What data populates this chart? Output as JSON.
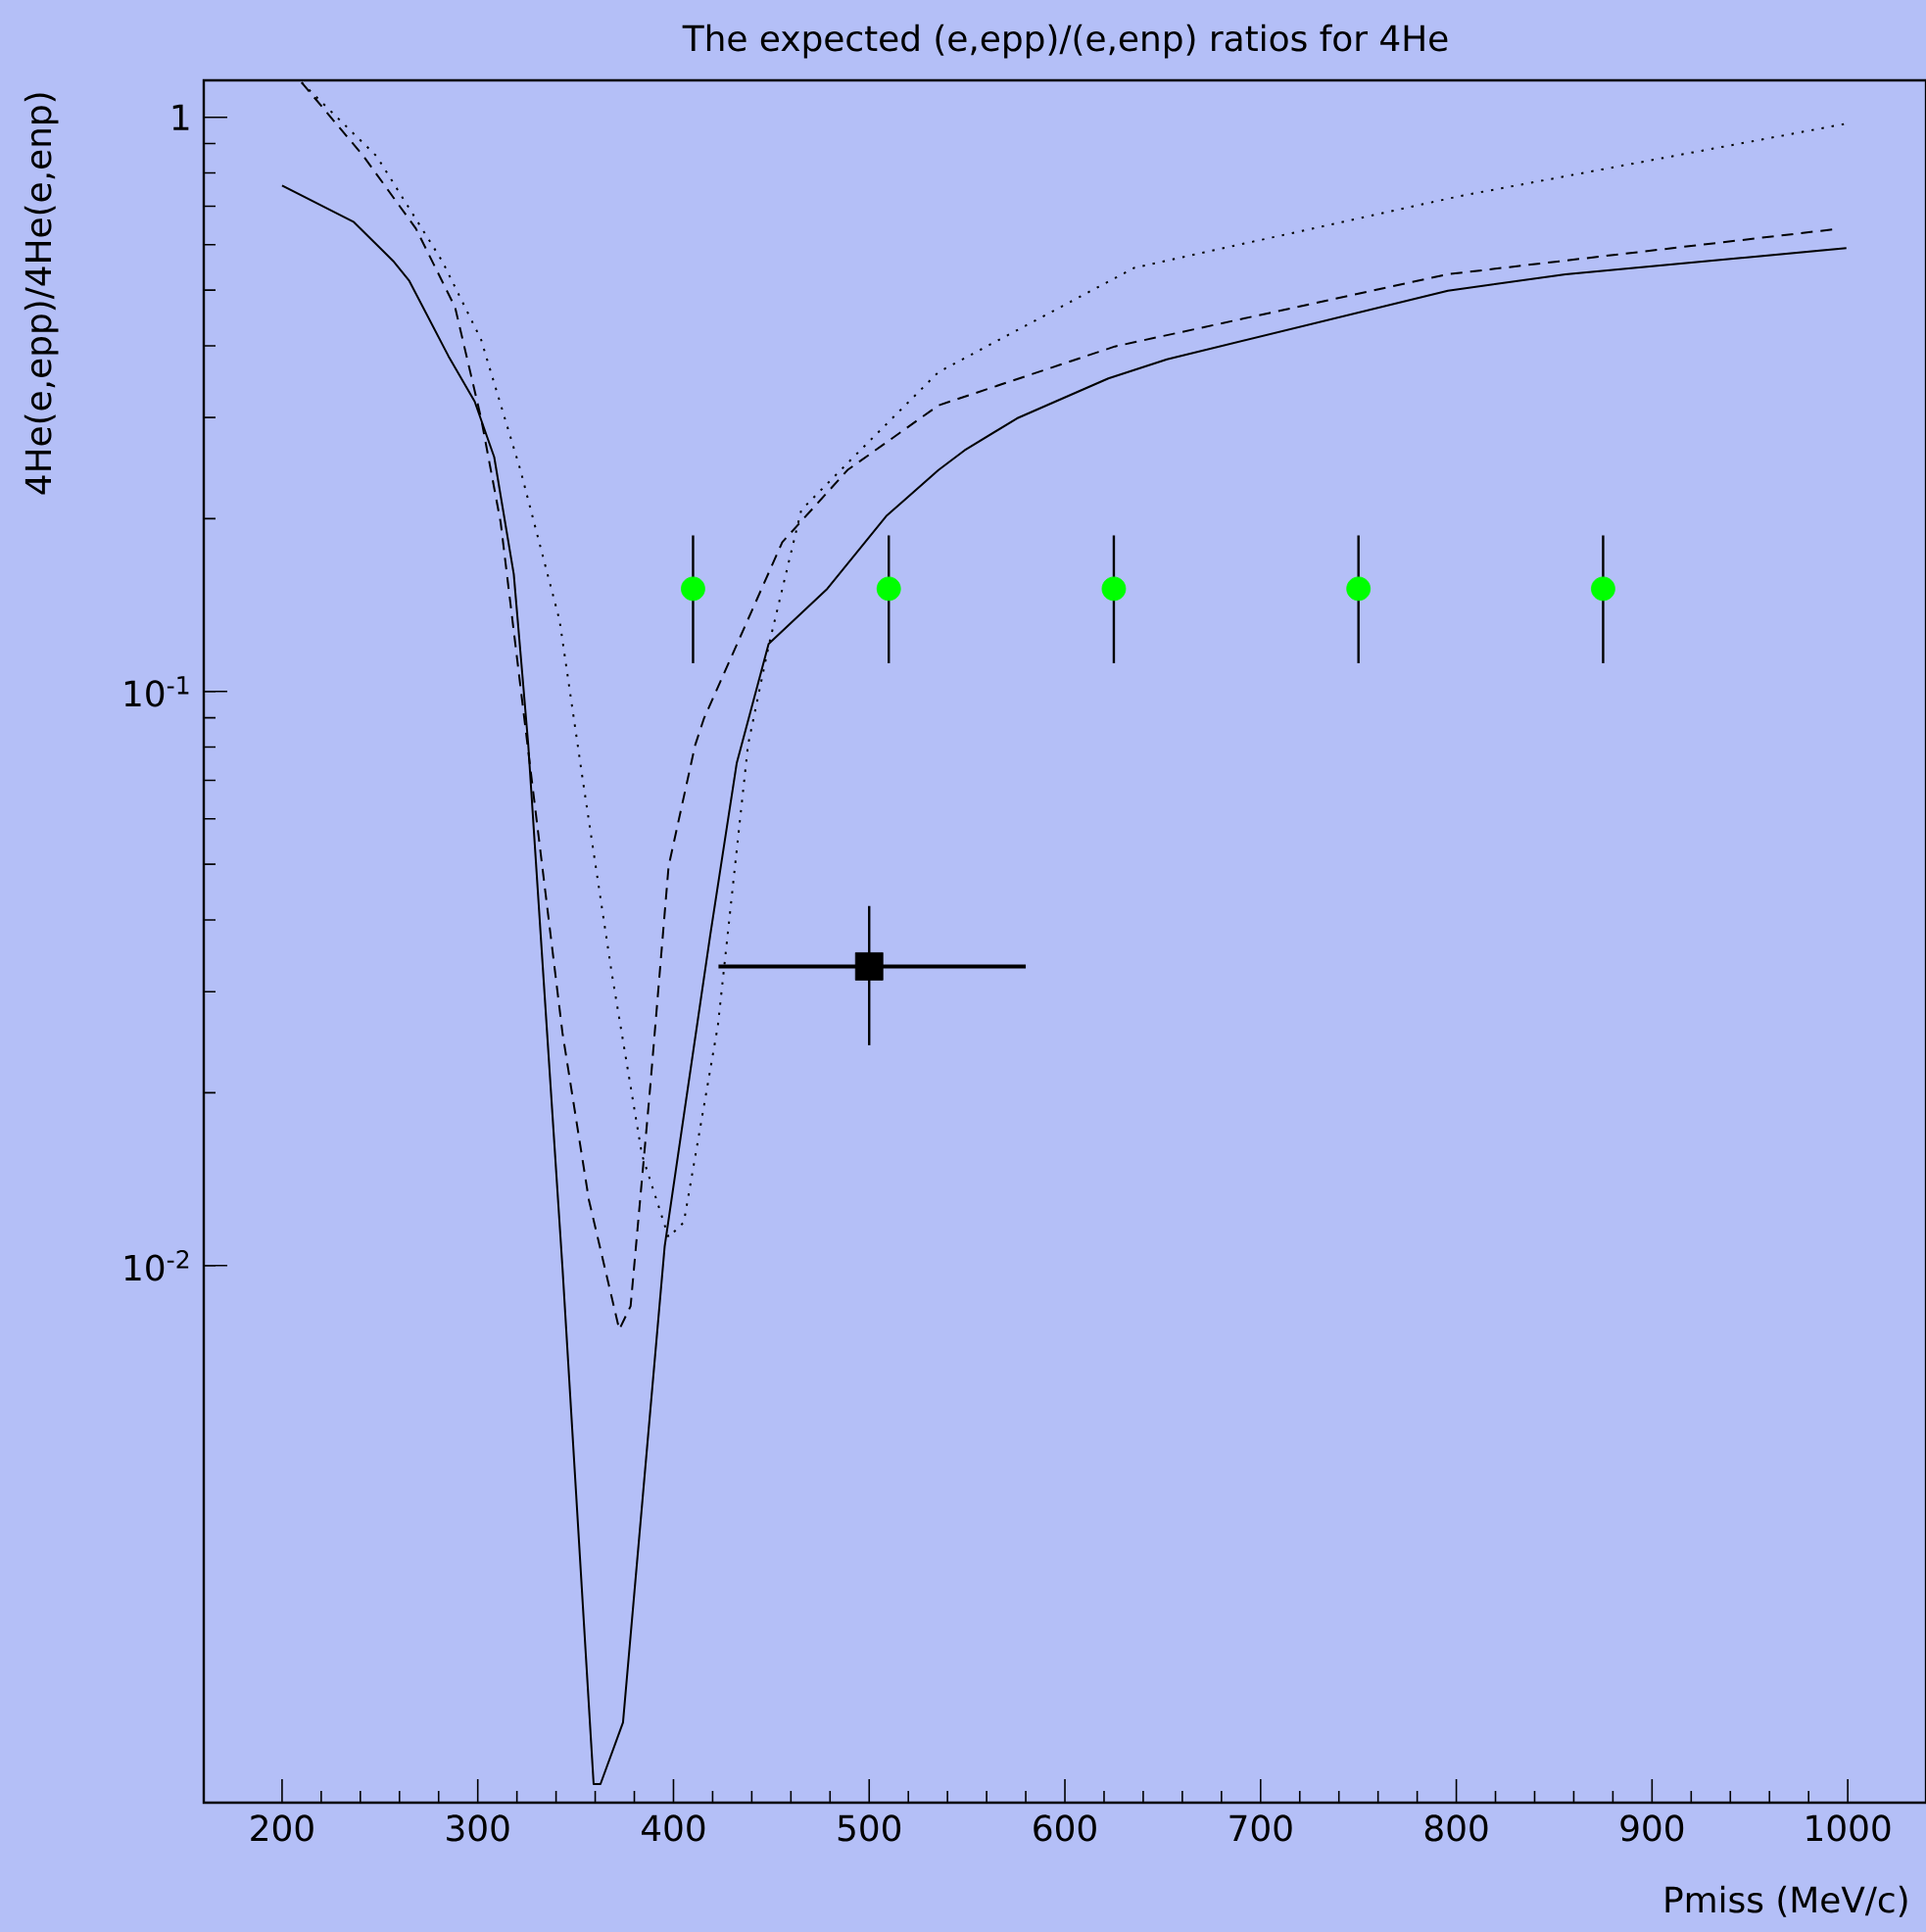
{
  "chart_data": {
    "type": "line",
    "title": "The expected (e,epp)/(e,enp) ratios for 4He",
    "xlabel": "Pmiss (MeV/c)",
    "ylabel": "4He(e,epp)/4He(e,enp)",
    "log": "y",
    "xlim": [
      160,
      1040
    ],
    "ylim": [
      0.00116,
      1.16
    ],
    "xticks": [
      200,
      300,
      400,
      500,
      600,
      700,
      800,
      900,
      1000
    ],
    "yticks": [
      {
        "value": 0.01,
        "label": "10$^{-2}$"
      },
      {
        "value": 0.1,
        "label": "10$^{-1}$"
      },
      1
    ],
    "series": [
      {
        "color": "#000000",
        "line_style": "solid",
        "x": [
          200,
          236.7,
          256.8,
          265,
          285,
          298.4,
          308.4,
          318.4,
          323.5,
          325.8,
          343.3,
          359.2,
          362.7,
          374.2,
          395.5,
          418.8,
          432.3,
          448.6,
          478.6,
          508.7,
          535.4,
          548.7,
          575.5,
          622.2,
          652.2,
          795.7,
          855.8,
          999.3
        ],
        "values": [
          0.761,
          0.657,
          0.562,
          0.519,
          0.384,
          0.32,
          0.256,
          0.16,
          0.1,
          0.0807,
          0.00989,
          0.00125,
          0.00125,
          0.0016,
          0.0108,
          0.0377,
          0.075,
          0.121,
          0.151,
          0.202,
          0.243,
          0.263,
          0.299,
          0.351,
          0.379,
          0.499,
          0.533,
          0.592
        ]
      },
      {
        "color": "#000000",
        "line_style": "dashed",
        "x": [
          210,
          241.7,
          268.4,
          288.4,
          301.7,
          311.7,
          321.8,
          343.3,
          356.8,
          372.3,
          378.1,
          387.8,
          397.5,
          411.1,
          415.5,
          455.6,
          488.9,
          535.4,
          625.5,
          795.7,
          996
        ],
        "values": [
          1.15,
          0.855,
          0.64,
          0.467,
          0.299,
          0.197,
          0.102,
          0.0254,
          0.013,
          0.00774,
          0.0085,
          0.0199,
          0.0496,
          0.0807,
          0.0896,
          0.182,
          0.243,
          0.315,
          0.399,
          0.533,
          0.64
        ]
      },
      {
        "color": "#000000",
        "line_style": "dotted",
        "x": [
          210,
          248.4,
          281.8,
          301.7,
          321.8,
          341.8,
          353.5,
          368.4,
          383.9,
          397.5,
          405.3,
          422.7,
          438.1,
          448.6,
          465.3,
          495.4,
          535.4,
          635.5,
          802.4,
          999.3
        ],
        "values": [
          1.15,
          0.855,
          0.562,
          0.41,
          0.243,
          0.133,
          0.0707,
          0.0324,
          0.0156,
          0.0112,
          0.0119,
          0.0262,
          0.0807,
          0.12,
          0.207,
          0.263,
          0.36,
          0.547,
          0.73,
          0.975
        ]
      },
      {
        "type": "scatter",
        "color": "#00ff00",
        "marker": "circle",
        "x": [
          410,
          510,
          625,
          750,
          875
        ],
        "values": [
          0.151,
          0.151,
          0.151,
          0.151,
          0.151
        ],
        "errors": [
          [
            0.112,
            0.187
          ],
          [
            0.112,
            0.187
          ],
          [
            0.112,
            0.187
          ],
          [
            0.112,
            0.187
          ],
          [
            0.112,
            0.187
          ]
        ]
      },
      {
        "type": "scatter",
        "color": "#000000",
        "marker": "square",
        "x": [
          500
        ],
        "values": [
          0.0332
        ],
        "errors": [
          [
            0.0242,
            0.0423
          ]
        ],
        "xerrors": [
          [
            423,
            580
          ]
        ]
      }
    ]
  }
}
